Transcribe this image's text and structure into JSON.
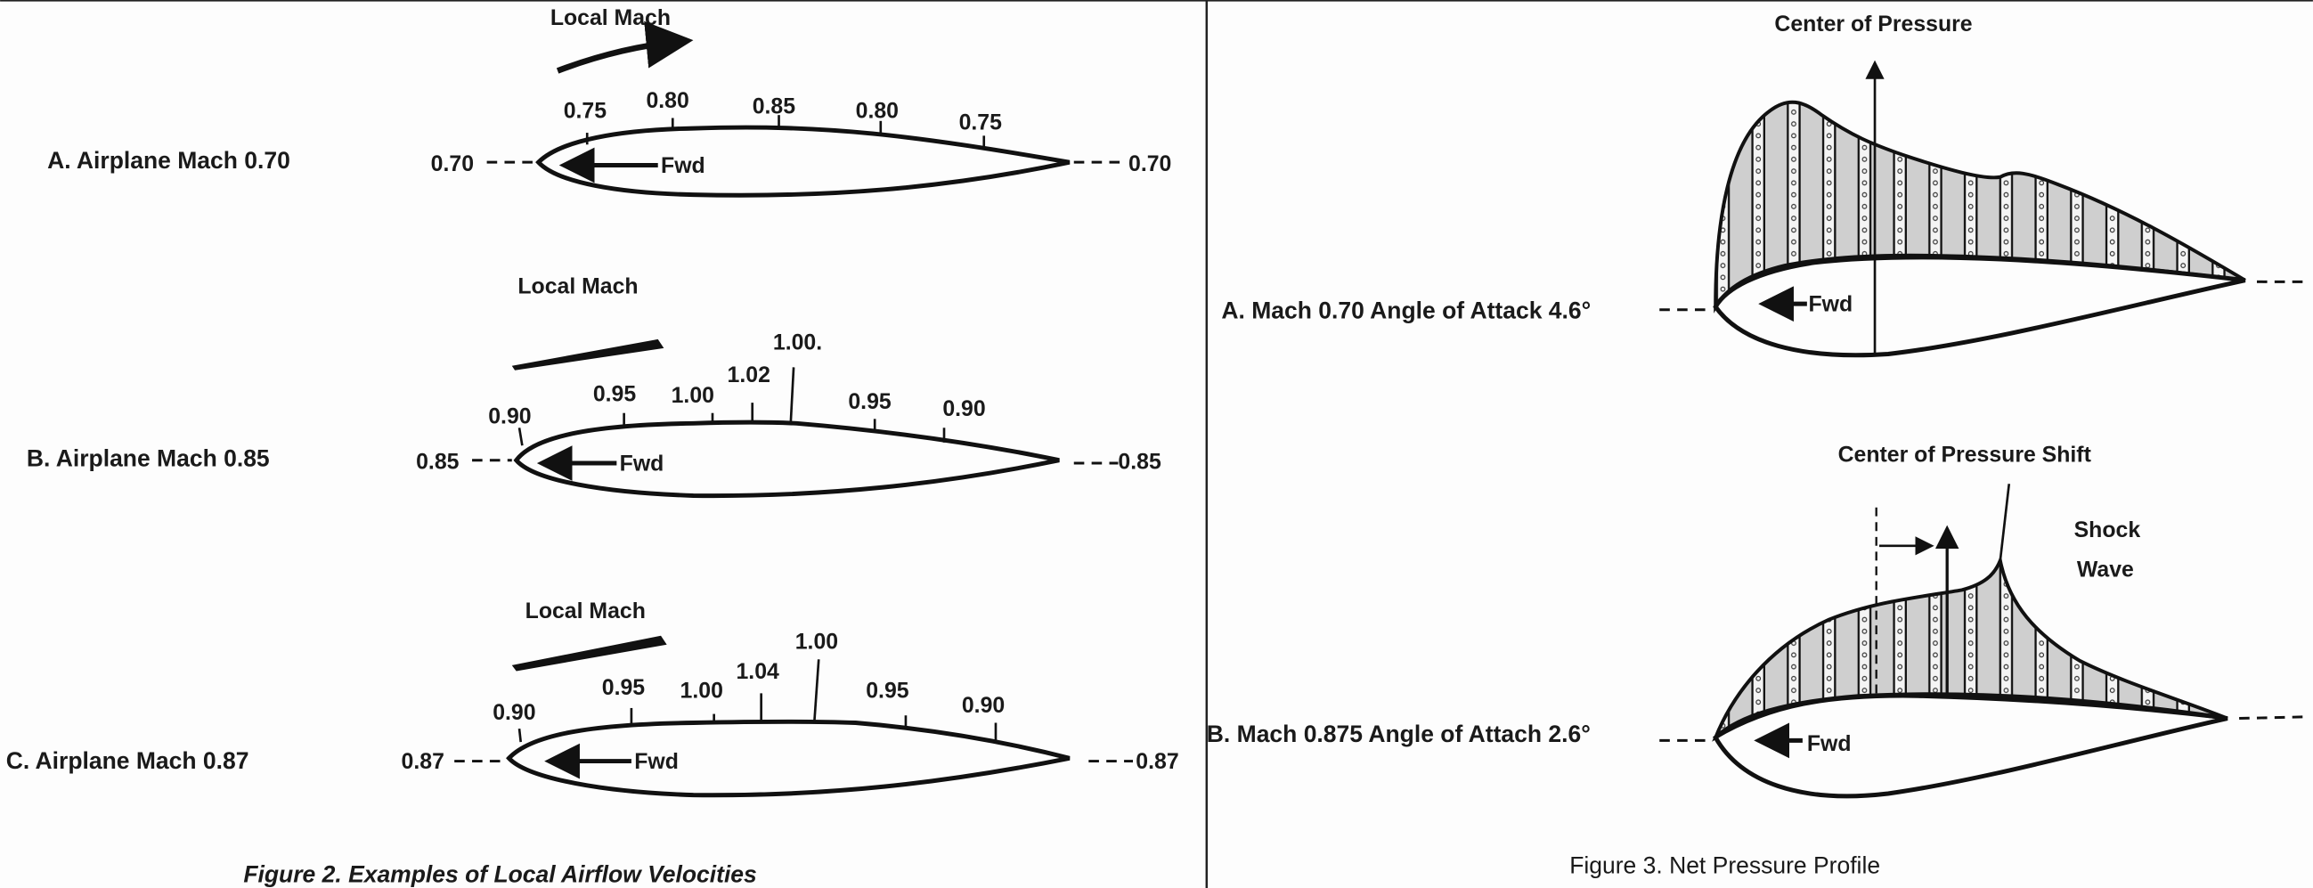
{
  "figure2": {
    "caption": "Figure 2.  Examples of Local Airflow Velocities",
    "panels": [
      {
        "label": "A. Airplane Mach 0.70",
        "local_mach": "Local Mach",
        "freestream_left": "0.70",
        "freestream_right": "0.70",
        "fwd": "Fwd",
        "ticks": [
          "0.75",
          "0.80",
          "0.85",
          "0.80",
          "0.75"
        ]
      },
      {
        "label": "B. Airplane Mach 0.85",
        "local_mach": "Local Mach",
        "freestream_left": "0.85",
        "freestream_right": "0.85",
        "fwd": "Fwd",
        "ticks": [
          "0.90",
          "0.95",
          "1.00",
          "1.02",
          "1.00.",
          "0.95",
          "0.90"
        ]
      },
      {
        "label": "C. Airplane Mach 0.87",
        "local_mach": "Local Mach",
        "freestream_left": "0.87",
        "freestream_right": "0.87",
        "fwd": "Fwd",
        "ticks": [
          "0.90",
          "0.95",
          "1.00",
          "1.04",
          "1.00",
          "0.95",
          "0.90"
        ]
      }
    ]
  },
  "figure3": {
    "caption": "Figure 3.  Net Pressure Profile",
    "panels": [
      {
        "label": "A. Mach 0.70 Angle of Attack 4.6°",
        "annotation": "Center of Pressure",
        "fwd": "Fwd"
      },
      {
        "label": "B. Mach 0.875 Angle of Attach 2.6°",
        "annotation": "Center of Pressure Shift",
        "shock": [
          "Shock",
          "Wave"
        ],
        "fwd": "Fwd"
      }
    ]
  }
}
